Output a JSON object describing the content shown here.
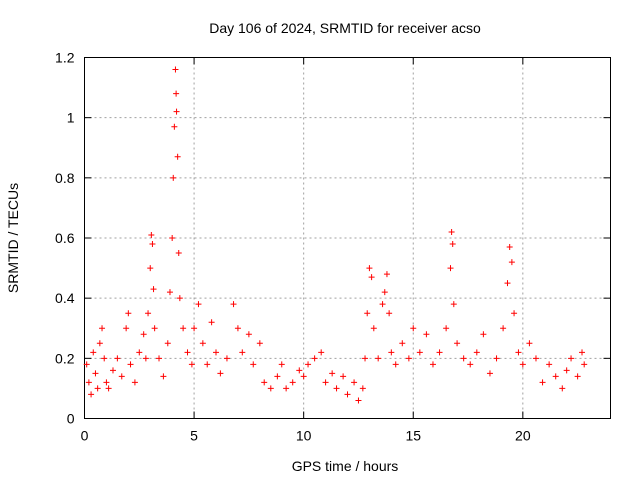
{
  "chart_data": {
    "type": "scatter",
    "title": "Day 106 of 2024, SRMTID for receiver acso",
    "xlabel": "GPS time / hours",
    "ylabel": "SRMTID / TECUs",
    "xlim": [
      0,
      24
    ],
    "ylim": [
      0,
      1.2
    ],
    "xticks": [
      0,
      5,
      10,
      15,
      20
    ],
    "xtick_labels": [
      "0",
      "5",
      "10",
      "15",
      "20"
    ],
    "yticks": [
      0,
      0.2,
      0.4,
      0.6,
      0.8,
      1.0,
      1.2
    ],
    "ytick_labels": [
      "0",
      "0.2",
      "0.4",
      "0.6",
      "0.8",
      "1",
      "1.2"
    ],
    "grid": true,
    "marker": "+",
    "color": "#ff0000",
    "series": [
      {
        "name": "SRMTID",
        "points": [
          [
            0.1,
            0.18
          ],
          [
            0.2,
            0.12
          ],
          [
            0.3,
            0.08
          ],
          [
            0.4,
            0.22
          ],
          [
            0.5,
            0.15
          ],
          [
            0.6,
            0.1
          ],
          [
            0.7,
            0.25
          ],
          [
            0.8,
            0.3
          ],
          [
            0.9,
            0.2
          ],
          [
            1.0,
            0.12
          ],
          [
            1.1,
            0.1
          ],
          [
            1.3,
            0.16
          ],
          [
            1.5,
            0.2
          ],
          [
            1.7,
            0.14
          ],
          [
            1.9,
            0.3
          ],
          [
            2.0,
            0.35
          ],
          [
            2.1,
            0.18
          ],
          [
            2.3,
            0.12
          ],
          [
            2.5,
            0.22
          ],
          [
            2.7,
            0.28
          ],
          [
            2.8,
            0.2
          ],
          [
            2.9,
            0.35
          ],
          [
            3.0,
            0.5
          ],
          [
            3.05,
            0.61
          ],
          [
            3.1,
            0.58
          ],
          [
            3.15,
            0.43
          ],
          [
            3.2,
            0.3
          ],
          [
            3.4,
            0.2
          ],
          [
            3.6,
            0.14
          ],
          [
            3.8,
            0.25
          ],
          [
            3.9,
            0.42
          ],
          [
            4.0,
            0.6
          ],
          [
            4.05,
            0.8
          ],
          [
            4.1,
            0.97
          ],
          [
            4.15,
            1.16
          ],
          [
            4.18,
            1.08
          ],
          [
            4.2,
            1.02
          ],
          [
            4.25,
            0.87
          ],
          [
            4.3,
            0.55
          ],
          [
            4.35,
            0.4
          ],
          [
            4.5,
            0.3
          ],
          [
            4.7,
            0.22
          ],
          [
            4.9,
            0.18
          ],
          [
            5.0,
            0.3
          ],
          [
            5.2,
            0.38
          ],
          [
            5.4,
            0.25
          ],
          [
            5.6,
            0.18
          ],
          [
            5.8,
            0.32
          ],
          [
            6.0,
            0.22
          ],
          [
            6.2,
            0.15
          ],
          [
            6.5,
            0.2
          ],
          [
            6.8,
            0.38
          ],
          [
            7.0,
            0.3
          ],
          [
            7.2,
            0.22
          ],
          [
            7.5,
            0.28
          ],
          [
            7.7,
            0.18
          ],
          [
            8.0,
            0.25
          ],
          [
            8.2,
            0.12
          ],
          [
            8.5,
            0.1
          ],
          [
            8.8,
            0.14
          ],
          [
            9.0,
            0.18
          ],
          [
            9.2,
            0.1
          ],
          [
            9.5,
            0.12
          ],
          [
            9.8,
            0.16
          ],
          [
            10.0,
            0.14
          ],
          [
            10.2,
            0.18
          ],
          [
            10.5,
            0.2
          ],
          [
            10.8,
            0.22
          ],
          [
            11.0,
            0.12
          ],
          [
            11.3,
            0.15
          ],
          [
            11.5,
            0.1
          ],
          [
            11.8,
            0.14
          ],
          [
            12.0,
            0.08
          ],
          [
            12.3,
            0.12
          ],
          [
            12.5,
            0.06
          ],
          [
            12.7,
            0.1
          ],
          [
            12.8,
            0.2
          ],
          [
            12.9,
            0.35
          ],
          [
            13.0,
            0.5
          ],
          [
            13.1,
            0.47
          ],
          [
            13.2,
            0.3
          ],
          [
            13.4,
            0.2
          ],
          [
            13.6,
            0.38
          ],
          [
            13.7,
            0.42
          ],
          [
            13.8,
            0.48
          ],
          [
            13.9,
            0.35
          ],
          [
            14.0,
            0.22
          ],
          [
            14.2,
            0.18
          ],
          [
            14.5,
            0.25
          ],
          [
            14.8,
            0.2
          ],
          [
            15.0,
            0.3
          ],
          [
            15.3,
            0.22
          ],
          [
            15.6,
            0.28
          ],
          [
            15.9,
            0.18
          ],
          [
            16.2,
            0.22
          ],
          [
            16.5,
            0.3
          ],
          [
            16.7,
            0.5
          ],
          [
            16.75,
            0.62
          ],
          [
            16.8,
            0.58
          ],
          [
            16.85,
            0.38
          ],
          [
            17.0,
            0.25
          ],
          [
            17.3,
            0.2
          ],
          [
            17.6,
            0.18
          ],
          [
            17.9,
            0.22
          ],
          [
            18.2,
            0.28
          ],
          [
            18.5,
            0.15
          ],
          [
            18.8,
            0.2
          ],
          [
            19.1,
            0.3
          ],
          [
            19.3,
            0.45
          ],
          [
            19.4,
            0.57
          ],
          [
            19.5,
            0.52
          ],
          [
            19.6,
            0.35
          ],
          [
            19.8,
            0.22
          ],
          [
            20.0,
            0.18
          ],
          [
            20.3,
            0.25
          ],
          [
            20.6,
            0.2
          ],
          [
            20.9,
            0.12
          ],
          [
            21.2,
            0.18
          ],
          [
            21.5,
            0.14
          ],
          [
            21.8,
            0.1
          ],
          [
            22.0,
            0.16
          ],
          [
            22.2,
            0.2
          ],
          [
            22.5,
            0.14
          ],
          [
            22.7,
            0.22
          ],
          [
            22.8,
            0.18
          ]
        ]
      }
    ]
  }
}
